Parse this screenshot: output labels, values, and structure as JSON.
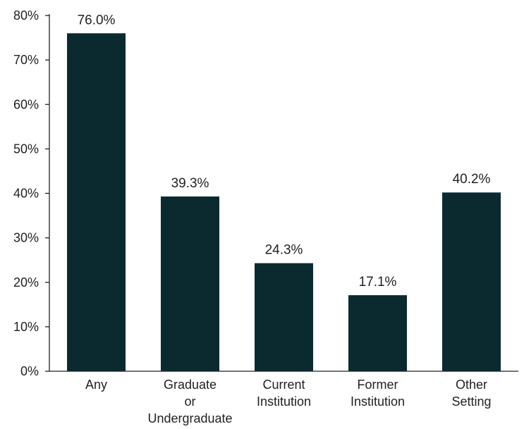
{
  "chart_data": {
    "type": "bar",
    "title": "",
    "xlabel": "",
    "ylabel": "",
    "categories": [
      [
        "Any"
      ],
      [
        "Graduate",
        "or",
        "Undergraduate"
      ],
      [
        "Current",
        "Institution"
      ],
      [
        "Former",
        "Institution"
      ],
      [
        "Other",
        "Setting"
      ]
    ],
    "values": [
      76.0,
      39.3,
      24.3,
      17.1,
      40.2
    ],
    "value_labels": [
      "76.0%",
      "39.3%",
      "24.3%",
      "17.1%",
      "40.2%"
    ],
    "ylim": [
      0,
      80
    ],
    "yticks": [
      0,
      10,
      20,
      30,
      40,
      50,
      60,
      70,
      80
    ],
    "ytick_labels": [
      "0%",
      "10%",
      "20%",
      "30%",
      "40%",
      "50%",
      "60%",
      "70%",
      "80%"
    ],
    "grid": false,
    "legend": "none",
    "bar_color": "#0b2a30"
  }
}
